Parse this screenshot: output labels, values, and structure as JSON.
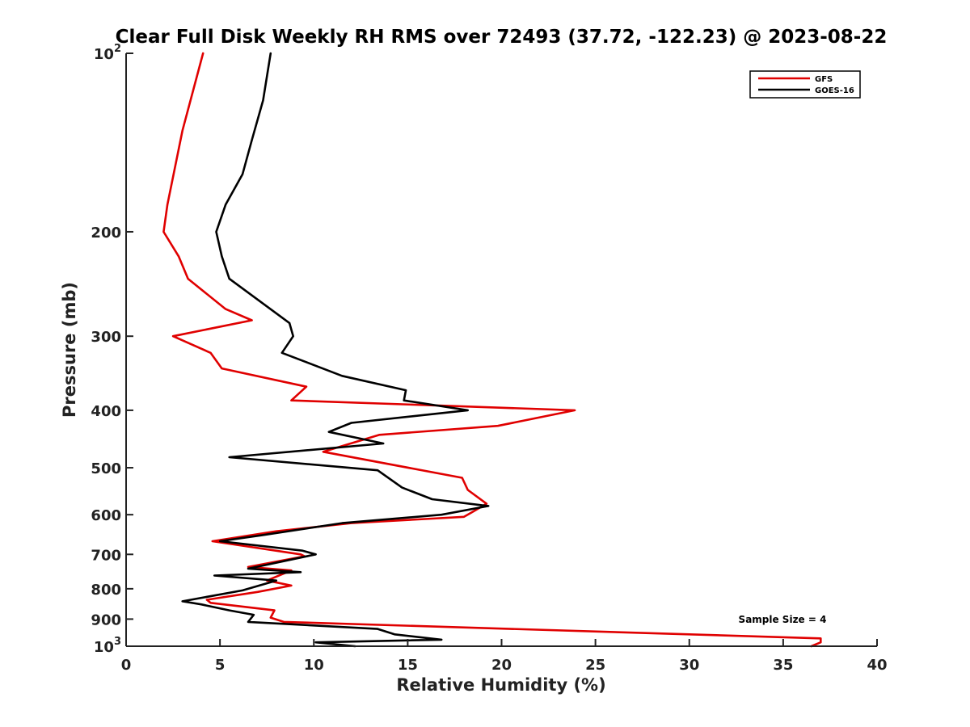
{
  "chart_data": {
    "type": "line",
    "title": "Clear Full Disk Weekly RH RMS over 72493 (37.72, -122.23) @ 2023-08-22",
    "xlabel": "Relative Humidity (%)",
    "ylabel": "Pressure (mb)",
    "xlim": [
      0,
      40
    ],
    "ylim": [
      100,
      1000
    ],
    "yscale": "log",
    "y_reversed": true,
    "x_ticks": [
      "0",
      "5",
      "10",
      "15",
      "20",
      "25",
      "30",
      "35",
      "40"
    ],
    "y_ticks": [
      {
        "value": 100,
        "base": "10",
        "exp": "2"
      },
      {
        "value": 200,
        "label": "200"
      },
      {
        "value": 300,
        "label": "300"
      },
      {
        "value": 400,
        "label": "400"
      },
      {
        "value": 500,
        "label": "500"
      },
      {
        "value": 600,
        "label": "600"
      },
      {
        "value": 700,
        "label": "700"
      },
      {
        "value": 800,
        "label": "800"
      },
      {
        "value": 900,
        "label": "900"
      },
      {
        "value": 1000,
        "base": "10",
        "exp": "3"
      }
    ],
    "legend_position": "top-right",
    "grid": false,
    "annotation": "Sample Size = 4",
    "series": [
      {
        "name": "GFS",
        "color": "#e00000",
        "points": [
          [
            4.1,
            100
          ],
          [
            3.0,
            135
          ],
          [
            2.2,
            180
          ],
          [
            2.0,
            200
          ],
          [
            2.8,
            220
          ],
          [
            3.3,
            240
          ],
          [
            5.3,
            270
          ],
          [
            6.7,
            282
          ],
          [
            2.5,
            300
          ],
          [
            4.5,
            320
          ],
          [
            5.1,
            340
          ],
          [
            9.6,
            365
          ],
          [
            8.8,
            385
          ],
          [
            23.9,
            400
          ],
          [
            19.8,
            425
          ],
          [
            13.5,
            440
          ],
          [
            10.5,
            470
          ],
          [
            17.9,
            520
          ],
          [
            18.2,
            545
          ],
          [
            19.2,
            575
          ],
          [
            18.6,
            590
          ],
          [
            18.0,
            605
          ],
          [
            12.0,
            620
          ],
          [
            8.0,
            640
          ],
          [
            4.6,
            665
          ],
          [
            9.3,
            700
          ],
          [
            9.5,
            705
          ],
          [
            6.5,
            735
          ],
          [
            8.8,
            745
          ],
          [
            7.5,
            775
          ],
          [
            8.8,
            790
          ],
          [
            7.0,
            810
          ],
          [
            4.3,
            835
          ],
          [
            4.5,
            845
          ],
          [
            7.9,
            870
          ],
          [
            7.7,
            895
          ],
          [
            8.4,
            910
          ],
          [
            37.0,
            970
          ],
          [
            37.0,
            985
          ],
          [
            36.5,
            1000
          ]
        ]
      },
      {
        "name": "GOES-16",
        "color": "#000000",
        "points": [
          [
            7.7,
            100
          ],
          [
            7.3,
            120
          ],
          [
            6.7,
            140
          ],
          [
            6.2,
            160
          ],
          [
            5.3,
            180
          ],
          [
            4.8,
            200
          ],
          [
            5.1,
            220
          ],
          [
            5.5,
            240
          ],
          [
            8.7,
            285
          ],
          [
            8.9,
            300
          ],
          [
            8.3,
            320
          ],
          [
            11.5,
            350
          ],
          [
            14.9,
            370
          ],
          [
            14.8,
            385
          ],
          [
            18.2,
            400
          ],
          [
            12.0,
            420
          ],
          [
            10.8,
            435
          ],
          [
            13.7,
            455
          ],
          [
            5.5,
            480
          ],
          [
            13.4,
            505
          ],
          [
            14.7,
            540
          ],
          [
            16.3,
            565
          ],
          [
            19.3,
            580
          ],
          [
            16.8,
            600
          ],
          [
            11.5,
            620
          ],
          [
            7.2,
            650
          ],
          [
            5.0,
            665
          ],
          [
            9.4,
            690
          ],
          [
            10.1,
            700
          ],
          [
            6.5,
            740
          ],
          [
            9.3,
            750
          ],
          [
            4.7,
            760
          ],
          [
            8.0,
            775
          ],
          [
            6.2,
            805
          ],
          [
            3.0,
            840
          ],
          [
            4.0,
            850
          ],
          [
            5.5,
            870
          ],
          [
            6.8,
            885
          ],
          [
            6.5,
            910
          ],
          [
            13.4,
            935
          ],
          [
            14.3,
            955
          ],
          [
            16.8,
            975
          ],
          [
            10.1,
            985
          ],
          [
            12.2,
            1000
          ]
        ]
      }
    ]
  }
}
